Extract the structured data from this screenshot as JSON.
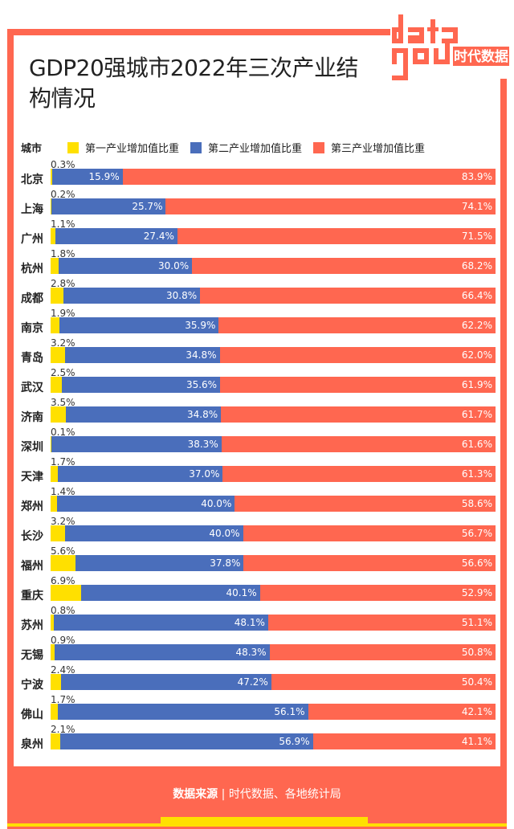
{
  "title": "GDP20强城市2022年三次产业结构情况",
  "logo_text": "data 时代数据",
  "legend": {
    "city_label": "城市",
    "items": [
      {
        "label": "第一产业增加值比重",
        "color": "#FFE000"
      },
      {
        "label": "第二产业增加值比重",
        "color": "#4A6EBB"
      },
      {
        "label": "第三产业增加值比重",
        "color": "#FF6750"
      }
    ]
  },
  "chart_data": {
    "type": "bar",
    "stacked": true,
    "orientation": "horizontal",
    "title": "GDP20强城市2022年三次产业结构情况",
    "categories": [
      "北京",
      "上海",
      "广州",
      "杭州",
      "成都",
      "南京",
      "青岛",
      "武汉",
      "济南",
      "深圳",
      "天津",
      "郑州",
      "长沙",
      "福州",
      "重庆",
      "苏州",
      "无锡",
      "宁波",
      "佛山",
      "泉州"
    ],
    "series": [
      {
        "name": "第一产业增加值比重",
        "values": [
          0.3,
          0.2,
          1.1,
          1.8,
          2.8,
          1.9,
          3.2,
          2.5,
          3.5,
          0.1,
          1.7,
          1.4,
          3.2,
          5.6,
          6.9,
          0.8,
          0.9,
          2.4,
          1.7,
          2.1
        ]
      },
      {
        "name": "第二产业增加值比重",
        "values": [
          15.9,
          25.7,
          27.4,
          30.0,
          30.8,
          35.9,
          34.8,
          35.6,
          34.8,
          38.3,
          37.0,
          40.0,
          40.0,
          37.8,
          40.1,
          48.1,
          48.3,
          47.2,
          56.1,
          56.9
        ]
      },
      {
        "name": "第三产业增加值比重",
        "values": [
          83.9,
          74.1,
          71.5,
          68.2,
          66.4,
          62.2,
          62.0,
          61.9,
          61.7,
          61.6,
          61.3,
          58.6,
          56.7,
          56.6,
          52.9,
          51.1,
          50.8,
          50.4,
          42.1,
          41.1
        ]
      }
    ],
    "unit": "%",
    "xlim": [
      0,
      100
    ],
    "legend_position": "top"
  },
  "footer": {
    "source_label": "数据来源",
    "separator": "|",
    "source_text": "时代数据、各地统计局"
  }
}
